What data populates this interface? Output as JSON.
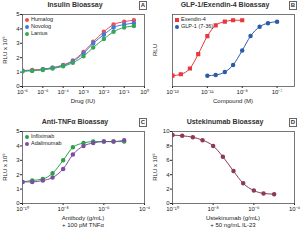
{
  "chart_data": [
    {
      "type": "line",
      "title": "Insulin Bioassay",
      "annotation": "A",
      "x_label": "Drug (IU)",
      "y_label": "RLU x 10⁵",
      "log": "x",
      "legend": "top-left",
      "xlim": [
        1e-06,
        1
      ],
      "xticks": [
        {
          "value": 1e-06,
          "label": "10⁻⁶"
        },
        {
          "value": 1e-05,
          "label": "10⁻⁵"
        },
        {
          "value": 0.0001,
          "label": "10⁻⁴"
        },
        {
          "value": 0.001,
          "label": "10⁻³"
        },
        {
          "value": 0.01,
          "label": "10⁻²"
        },
        {
          "value": 0.1,
          "label": "10⁻¹"
        },
        {
          "value": 1,
          "label": "10⁰"
        }
      ],
      "ylim": [
        0,
        5
      ],
      "yticks": [
        0,
        1,
        2,
        3,
        4,
        5
      ],
      "series": [
        {
          "name": "Humalog",
          "color": "#e8505b",
          "marker": "circle",
          "x": [
            1e-06,
            3e-06,
            1e-05,
            3e-05,
            0.0001,
            0.0003,
            0.001,
            0.003,
            0.01,
            0.03,
            0.1,
            0.3
          ],
          "values": [
            1.1,
            1.15,
            1.2,
            1.3,
            1.5,
            1.8,
            2.4,
            3.1,
            3.8,
            4.3,
            4.5,
            4.6
          ]
        },
        {
          "name": "Novolog",
          "color": "#3b7ddd",
          "marker": "circle",
          "x": [
            1e-06,
            3e-06,
            1e-05,
            3e-05,
            0.0001,
            0.0003,
            0.001,
            0.003,
            0.01,
            0.03,
            0.1,
            0.3
          ],
          "values": [
            1.1,
            1.1,
            1.2,
            1.3,
            1.45,
            1.75,
            2.3,
            3.0,
            3.6,
            4.1,
            4.3,
            4.4
          ]
        },
        {
          "name": "Lantus",
          "color": "#3aa655",
          "marker": "circle",
          "x": [
            1e-06,
            3e-06,
            1e-05,
            3e-05,
            0.0001,
            0.0003,
            0.001,
            0.003,
            0.01,
            0.03,
            0.1,
            0.3
          ],
          "values": [
            1.05,
            1.1,
            1.15,
            1.25,
            1.4,
            1.65,
            2.1,
            2.7,
            3.3,
            3.8,
            4.1,
            4.2
          ]
        }
      ]
    },
    {
      "type": "line",
      "title": "GLP-1/Exendin-4 Bioassay",
      "annotation": "B",
      "x_label": "Compound (M)",
      "y_label": "RLU",
      "log": "x",
      "legend": "top-left",
      "tick_labels": "x",
      "xlim": [
        1e-13,
        1e-06
      ],
      "xticks": [
        {
          "value": 1e-13,
          "label": "10⁻¹³"
        },
        {
          "value": 1e-11,
          "label": "10⁻¹¹"
        },
        {
          "value": 1e-09,
          "label": "10⁻⁹"
        },
        {
          "value": 1e-07,
          "label": "10⁻⁷"
        }
      ],
      "ylim": [
        0,
        10
      ],
      "series": [
        {
          "name": "Exendin-4",
          "color": "#e8383d",
          "marker": "square",
          "x": [
            1e-13,
            3e-13,
            1e-12,
            3e-12,
            1e-11,
            3e-11,
            1e-10,
            3e-10,
            1e-09
          ],
          "values": [
            1.5,
            1.7,
            2.5,
            4.5,
            7,
            8.5,
            9,
            9.2,
            9.2
          ]
        },
        {
          "name": "GLP-1 (7-36)",
          "color": "#2b5ca8",
          "marker": "circle",
          "x": [
            1e-11,
            3e-11,
            1e-10,
            3e-10,
            1e-09,
            3e-09,
            1e-08,
            3e-08,
            1e-07
          ],
          "values": [
            1.5,
            1.6,
            2,
            3,
            5,
            7,
            8.3,
            8.8,
            9
          ]
        }
      ]
    },
    {
      "type": "line",
      "title": "Anti-TNFα Bioassay",
      "annotation": "C",
      "x_label": "Antibody (g/mL)\n+ 100 pM TNFα",
      "y_label": "RLU x 10⁵",
      "log": "x",
      "legend": "top-left",
      "xlim": [
        1e-10,
        0.0001
      ],
      "xticks": [
        {
          "value": 1e-10,
          "label": "10⁻¹⁰"
        },
        {
          "value": 1e-08,
          "label": "10⁻⁸"
        },
        {
          "value": 1e-06,
          "label": "10⁻⁶"
        },
        {
          "value": 0.0001,
          "label": "10⁻⁴"
        }
      ],
      "ylim": [
        0,
        5
      ],
      "yticks": [
        0,
        1,
        2,
        3,
        4,
        5
      ],
      "series": [
        {
          "name": "Infliximab",
          "color": "#2aa04a",
          "marker": "circle",
          "x": [
            1e-10,
            3e-10,
            1e-09,
            3e-09,
            1e-08,
            3e-08,
            1e-07,
            3e-07,
            1e-06,
            3e-06,
            1e-05
          ],
          "values": [
            1.5,
            1.6,
            1.7,
            2.1,
            3,
            3.9,
            4.2,
            4.3,
            4.3,
            4.3,
            4.3
          ]
        },
        {
          "name": "Adalimumab",
          "color": "#7b4fa0",
          "marker": "circle",
          "x": [
            1e-10,
            3e-10,
            1e-09,
            3e-09,
            1e-08,
            3e-08,
            1e-07,
            3e-07,
            1e-06,
            3e-06,
            1e-05
          ],
          "values": [
            1.5,
            1.5,
            1.6,
            1.8,
            2.4,
            3.4,
            4,
            4.2,
            4.3,
            4.3,
            4.4
          ]
        }
      ]
    },
    {
      "type": "line",
      "title": "Ustekinumab Bioassay",
      "annotation": "D",
      "x_label": "Ustekinumab (g/mL)\n+ 50 ng/mL IL-23",
      "y_label": "RLU x 10⁵",
      "log": "x",
      "xlim": [
        1e-10,
        0.0001
      ],
      "xticks": [
        {
          "value": 1e-10,
          "label": "10⁻¹⁰"
        },
        {
          "value": 1e-08,
          "label": "10⁻⁸"
        },
        {
          "value": 1e-06,
          "label": "10⁻⁶"
        },
        {
          "value": 0.0001,
          "label": "10⁻⁴"
        }
      ],
      "ylim": [
        0,
        10
      ],
      "yticks": [
        0,
        2,
        4,
        6,
        8,
        10
      ],
      "series": [
        {
          "color": "#8a3a5a",
          "marker": "circle",
          "x": [
            1e-10,
            3e-10,
            1e-09,
            3e-09,
            1e-08,
            3e-08,
            1e-07,
            3e-07,
            1e-06,
            3e-06,
            1e-05
          ],
          "values": [
            9.5,
            9.4,
            9.2,
            8.8,
            8,
            6.5,
            4.5,
            2.8,
            1.8,
            1.4,
            1.3
          ]
        }
      ]
    }
  ]
}
